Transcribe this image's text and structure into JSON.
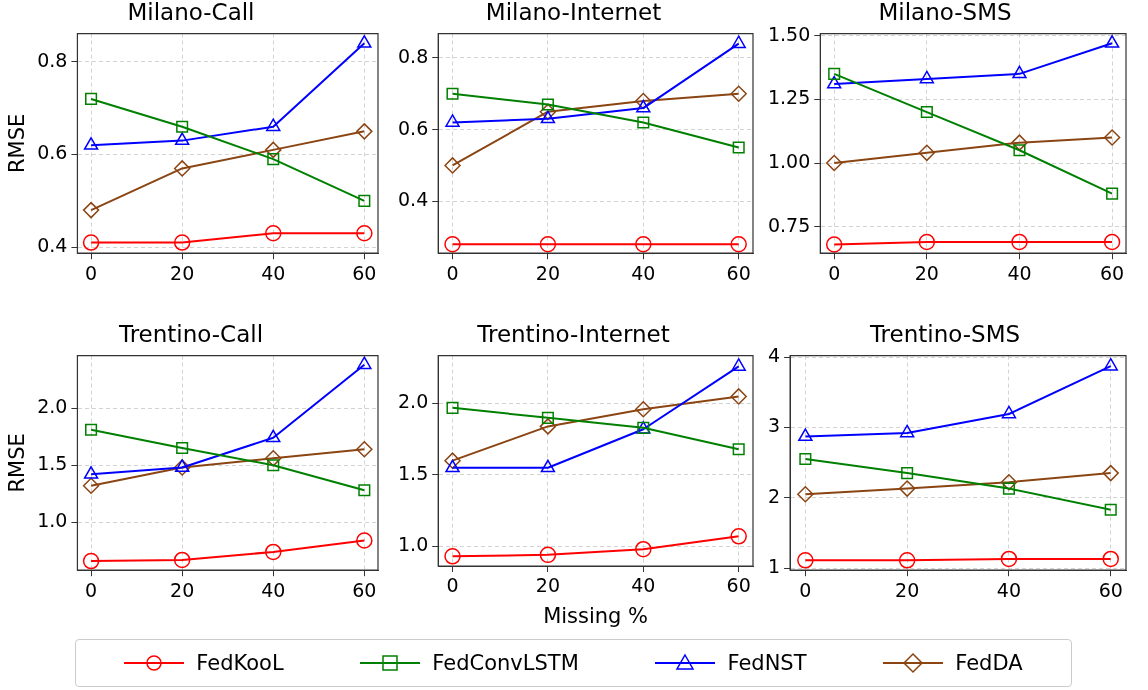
{
  "chart_data": [
    {
      "type": "line",
      "title": "Milano-Call",
      "ylabel": "RMSE",
      "x": [
        0,
        20,
        40,
        60
      ],
      "xlim": [
        -3,
        63
      ],
      "xticks": [
        0,
        20,
        40,
        60
      ],
      "ylim": [
        0.387,
        0.861
      ],
      "yticks": [
        {
          "value": 0.4,
          "label": "0.4"
        },
        {
          "value": 0.6,
          "label": "0.6"
        },
        {
          "value": 0.8,
          "label": "0.8"
        }
      ],
      "grid": true,
      "legend": "bottom",
      "line_style": "solid",
      "series": [
        {
          "name": "FedKooL",
          "color": "#ff0000",
          "marker": "circle",
          "values": [
            0.41,
            0.41,
            0.43,
            0.43
          ]
        },
        {
          "name": "FedConvLSTM",
          "color": "#008000",
          "marker": "square",
          "values": [
            0.72,
            0.66,
            0.59,
            0.5
          ]
        },
        {
          "name": "FedNST",
          "color": "#0000ff",
          "marker": "triangle",
          "values": [
            0.62,
            0.63,
            0.66,
            0.84
          ]
        },
        {
          "name": "FedDA",
          "color": "#8b4513",
          "marker": "diamond",
          "values": [
            0.48,
            0.57,
            0.61,
            0.65
          ]
        }
      ]
    },
    {
      "type": "line",
      "title": "Milano-Internet",
      "x": [
        0,
        20,
        40,
        60
      ],
      "xlim": [
        -3,
        63
      ],
      "xticks": [
        0,
        20,
        40,
        60
      ],
      "ylim": [
        0.255,
        0.868
      ],
      "yticks": [
        {
          "value": 0.4,
          "label": "0.4"
        },
        {
          "value": 0.6,
          "label": "0.6"
        },
        {
          "value": 0.8,
          "label": "0.8"
        }
      ],
      "grid": true,
      "line_style": "solid",
      "series": [
        {
          "color": "#ff0000",
          "marker": "circle",
          "values": [
            0.28,
            0.28,
            0.28,
            0.28
          ]
        },
        {
          "color": "#008000",
          "marker": "square",
          "values": [
            0.7,
            0.67,
            0.62,
            0.55
          ]
        },
        {
          "color": "#0000ff",
          "marker": "triangle",
          "values": [
            0.62,
            0.63,
            0.66,
            0.84
          ]
        },
        {
          "color": "#8b4513",
          "marker": "diamond",
          "values": [
            0.5,
            0.65,
            0.68,
            0.7
          ]
        }
      ]
    },
    {
      "type": "line",
      "title": "Milano-SMS",
      "x": [
        0,
        20,
        40,
        60
      ],
      "xlim": [
        -3,
        63
      ],
      "xticks": [
        0,
        20,
        40,
        60
      ],
      "ylim": [
        0.646,
        1.508
      ],
      "yticks": [
        {
          "value": 0.75,
          "label": "0.75"
        },
        {
          "value": 1.0,
          "label": "1.00"
        },
        {
          "value": 1.25,
          "label": "1.25"
        },
        {
          "value": 1.5,
          "label": "1.50"
        }
      ],
      "grid": true,
      "line_style": "solid",
      "series": [
        {
          "color": "#ff0000",
          "marker": "circle",
          "values": [
            0.68,
            0.69,
            0.69,
            0.69
          ]
        },
        {
          "color": "#008000",
          "marker": "square",
          "values": [
            1.35,
            1.2,
            1.05,
            0.88
          ]
        },
        {
          "color": "#0000ff",
          "marker": "triangle",
          "values": [
            1.31,
            1.33,
            1.35,
            1.47
          ]
        },
        {
          "color": "#8b4513",
          "marker": "diamond",
          "values": [
            1.0,
            1.04,
            1.08,
            1.1
          ]
        }
      ]
    },
    {
      "type": "line",
      "title": "Trentino-Call",
      "ylabel": "RMSE",
      "x": [
        0,
        20,
        40,
        60
      ],
      "xlim": [
        -3,
        63
      ],
      "xticks": [
        0,
        20,
        40,
        60
      ],
      "ylim": [
        0.58,
        2.46
      ],
      "yticks": [
        {
          "value": 1.0,
          "label": "1.0"
        },
        {
          "value": 1.5,
          "label": "1.5"
        },
        {
          "value": 2.0,
          "label": "2.0"
        }
      ],
      "grid": true,
      "line_style": "solid",
      "series": [
        {
          "color": "#ff0000",
          "marker": "circle",
          "values": [
            0.66,
            0.67,
            0.74,
            0.84
          ]
        },
        {
          "color": "#008000",
          "marker": "square",
          "values": [
            1.81,
            1.65,
            1.5,
            1.28
          ]
        },
        {
          "color": "#0000ff",
          "marker": "triangle",
          "values": [
            1.42,
            1.48,
            1.74,
            2.38
          ]
        },
        {
          "color": "#8b4513",
          "marker": "diamond",
          "values": [
            1.32,
            1.48,
            1.56,
            1.64
          ]
        }
      ]
    },
    {
      "type": "line",
      "title": "Trentino-Internet",
      "xlabel": "Missing %",
      "x": [
        0,
        20,
        40,
        60
      ],
      "xlim": [
        -3,
        63
      ],
      "xticks": [
        0,
        20,
        40,
        60
      ],
      "ylim": [
        0.862,
        2.336
      ],
      "yticks": [
        {
          "value": 1.0,
          "label": "1.0"
        },
        {
          "value": 1.5,
          "label": "1.5"
        },
        {
          "value": 2.0,
          "label": "2.0"
        }
      ],
      "grid": true,
      "line_style": "solid",
      "series": [
        {
          "color": "#ff0000",
          "marker": "circle",
          "values": [
            0.93,
            0.94,
            0.98,
            1.07
          ]
        },
        {
          "color": "#008000",
          "marker": "square",
          "values": [
            1.97,
            1.9,
            1.83,
            1.68
          ]
        },
        {
          "color": "#0000ff",
          "marker": "triangle",
          "values": [
            1.55,
            1.55,
            1.82,
            2.26
          ]
        },
        {
          "color": "#8b4513",
          "marker": "diamond",
          "values": [
            1.6,
            1.84,
            1.96,
            2.05
          ]
        }
      ]
    },
    {
      "type": "line",
      "title": "Trentino-SMS",
      "x": [
        0,
        20,
        40,
        60
      ],
      "xlim": [
        -3,
        63
      ],
      "xticks": [
        0,
        20,
        40,
        60
      ],
      "ylim": [
        0.97,
        4.02
      ],
      "yticks": [
        1,
        2,
        3,
        4
      ],
      "grid": true,
      "line_style": "solid",
      "series": [
        {
          "color": "#ff0000",
          "marker": "circle",
          "values": [
            1.11,
            1.11,
            1.13,
            1.13
          ]
        },
        {
          "color": "#008000",
          "marker": "square",
          "values": [
            2.55,
            2.35,
            2.13,
            1.83
          ]
        },
        {
          "color": "#0000ff",
          "marker": "triangle",
          "values": [
            2.87,
            2.92,
            3.19,
            3.87
          ]
        },
        {
          "color": "#8b4513",
          "marker": "diamond",
          "values": [
            2.05,
            2.13,
            2.22,
            2.35
          ]
        }
      ]
    }
  ]
}
